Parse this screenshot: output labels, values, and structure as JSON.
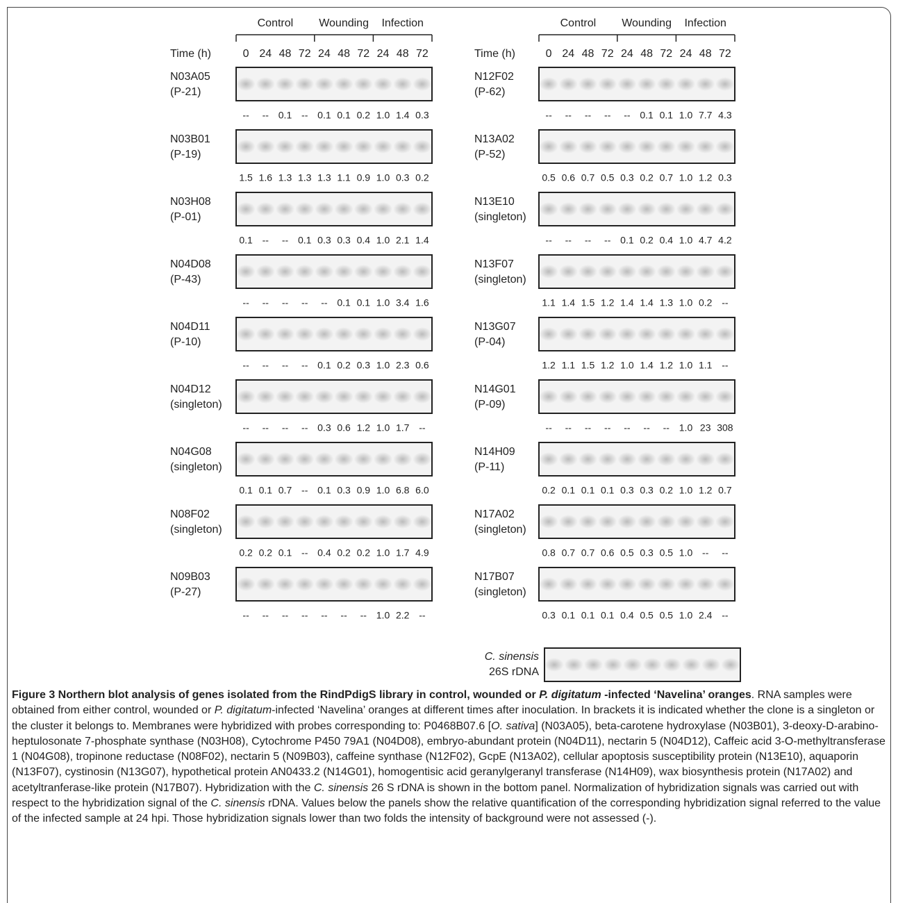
{
  "figure": {
    "panels": [
      {
        "groups": [
          "Control",
          "Wounding",
          "Infection"
        ],
        "time_label": "Time (h)",
        "times": [
          "0",
          "24",
          "48",
          "72",
          "24",
          "48",
          "72",
          "24",
          "48",
          "72"
        ],
        "rows": [
          {
            "name": "N03A05",
            "cluster": "(P-21)",
            "values": [
              "--",
              "--",
              "0.1",
              "--",
              "0.1",
              "0.1",
              "0.2",
              "1.0",
              "1.4",
              "0.3"
            ]
          },
          {
            "name": "N03B01",
            "cluster": "(P-19)",
            "values": [
              "1.5",
              "1.6",
              "1.3",
              "1.3",
              "1.3",
              "1.1",
              "0.9",
              "1.0",
              "0.3",
              "0.2"
            ]
          },
          {
            "name": "N03H08",
            "cluster": "(P-01)",
            "values": [
              "0.1",
              "--",
              "--",
              "0.1",
              "0.3",
              "0.3",
              "0.4",
              "1.0",
              "2.1",
              "1.4"
            ]
          },
          {
            "name": "N04D08",
            "cluster": "(P-43)",
            "values": [
              "--",
              "--",
              "--",
              "--",
              "--",
              "0.1",
              "0.1",
              "1.0",
              "3.4",
              "1.6"
            ]
          },
          {
            "name": "N04D11",
            "cluster": "(P-10)",
            "values": [
              "--",
              "--",
              "--",
              "--",
              "0.1",
              "0.2",
              "0.3",
              "1.0",
              "2.3",
              "0.6"
            ]
          },
          {
            "name": "N04D12",
            "cluster": "(singleton)",
            "values": [
              "--",
              "--",
              "--",
              "--",
              "0.3",
              "0.6",
              "1.2",
              "1.0",
              "1.7",
              "--"
            ]
          },
          {
            "name": "N04G08",
            "cluster": "(singleton)",
            "values": [
              "0.1",
              "0.1",
              "0.7",
              "--",
              "0.1",
              "0.3",
              "0.9",
              "1.0",
              "6.8",
              "6.0"
            ]
          },
          {
            "name": "N08F02",
            "cluster": "(singleton)",
            "values": [
              "0.2",
              "0.2",
              "0.1",
              "--",
              "0.4",
              "0.2",
              "0.2",
              "1.0",
              "1.7",
              "4.9"
            ]
          },
          {
            "name": "N09B03",
            "cluster": "(P-27)",
            "values": [
              "--",
              "--",
              "--",
              "--",
              "--",
              "--",
              "--",
              "1.0",
              "2.2",
              "--"
            ]
          }
        ]
      },
      {
        "groups": [
          "Control",
          "Wounding",
          "Infection"
        ],
        "time_label": "Time (h)",
        "times": [
          "0",
          "24",
          "48",
          "72",
          "24",
          "48",
          "72",
          "24",
          "48",
          "72"
        ],
        "rows": [
          {
            "name": "N12F02",
            "cluster": "(P-62)",
            "values": [
              "--",
              "--",
              "--",
              "--",
              "--",
              "0.1",
              "0.1",
              "1.0",
              "7.7",
              "4.3"
            ]
          },
          {
            "name": "N13A02",
            "cluster": "(P-52)",
            "values": [
              "0.5",
              "0.6",
              "0.7",
              "0.5",
              "0.3",
              "0.2",
              "0.7",
              "1.0",
              "1.2",
              "0.3"
            ]
          },
          {
            "name": "N13E10",
            "cluster": "(singleton)",
            "values": [
              "--",
              "--",
              "--",
              "--",
              "0.1",
              "0.2",
              "0.4",
              "1.0",
              "4.7",
              "4.2"
            ]
          },
          {
            "name": "N13F07",
            "cluster": "(singleton)",
            "values": [
              "1.1",
              "1.4",
              "1.5",
              "1.2",
              "1.4",
              "1.4",
              "1.3",
              "1.0",
              "0.2",
              "--"
            ]
          },
          {
            "name": "N13G07",
            "cluster": "(P-04)",
            "values": [
              "1.2",
              "1.1",
              "1.5",
              "1.2",
              "1.0",
              "1.4",
              "1.2",
              "1.0",
              "1.1",
              "--"
            ]
          },
          {
            "name": "N14G01",
            "cluster": "(P-09)",
            "values": [
              "--",
              "--",
              "--",
              "--",
              "--",
              "--",
              "--",
              "1.0",
              "23",
              "308"
            ]
          },
          {
            "name": "N14H09",
            "cluster": "(P-11)",
            "values": [
              "0.2",
              "0.1",
              "0.1",
              "0.1",
              "0.3",
              "0.3",
              "0.2",
              "1.0",
              "1.2",
              "0.7"
            ]
          },
          {
            "name": "N17A02",
            "cluster": "(singleton)",
            "values": [
              "0.8",
              "0.7",
              "0.7",
              "0.6",
              "0.5",
              "0.3",
              "0.5",
              "1.0",
              "--",
              "--"
            ]
          },
          {
            "name": "N17B07",
            "cluster": "(singleton)",
            "values": [
              "0.3",
              "0.1",
              "0.1",
              "0.1",
              "0.4",
              "0.5",
              "0.5",
              "1.0",
              "2.4",
              "--"
            ]
          }
        ]
      }
    ],
    "reference": {
      "name": "C. sinensis",
      "label": "26S rDNA"
    }
  },
  "caption": {
    "runs": [
      {
        "text": "Figure 3 Northern blot analysis of genes isolated from the RindPdigS library in control, wounded or ",
        "bold": true,
        "italic": false
      },
      {
        "text": "P. digitatum",
        "bold": true,
        "italic": true
      },
      {
        "text": " -infected ‘Navelina’ oranges",
        "bold": true,
        "italic": false
      },
      {
        "text": ". RNA samples were obtained from either control, wounded or ",
        "bold": false,
        "italic": false
      },
      {
        "text": "P. digitatum",
        "bold": false,
        "italic": true
      },
      {
        "text": "-infected ‘Navelina’ oranges at different times after inoculation. In brackets it is indicated whether the clone is a singleton or the cluster it belongs to. Membranes were hybridized with probes corresponding to: P0468B07.6 [",
        "bold": false,
        "italic": false
      },
      {
        "text": "O. sativa",
        "bold": false,
        "italic": true
      },
      {
        "text": "] (N03A05), beta-carotene hydroxylase (N03B01), 3-deoxy-D-arabino-heptulosonate 7-phosphate synthase (N03H08), Cytochrome P450 79A1 (N04D08), embryo-abundant protein (N04D11), nectarin 5 (N04D12), Caffeic acid 3-O-methyltransferase 1 (N04G08), tropinone reductase (N08F02), nectarin 5 (N09B03), caffeine synthase (N12F02), GcpE (N13A02), cellular apoptosis susceptibility protein (N13E10), aquaporin (N13F07), cystinosin (N13G07), hypothetical protein AN0433.2 (N14G01), homogentisic acid geranylgeranyl transferase (N14H09), wax biosynthesis protein (N17A02) and acetyltranferase-like protein (N17B07). Hybridization with the ",
        "bold": false,
        "italic": false
      },
      {
        "text": "C. sinensis",
        "bold": false,
        "italic": true
      },
      {
        "text": " 26 S rDNA is shown in the bottom panel. Normalization of hybridization signals was carried out with respect to the hybridization signal of the ",
        "bold": false,
        "italic": false
      },
      {
        "text": "C. sinensis",
        "bold": false,
        "italic": true
      },
      {
        "text": " rDNA. Values below the panels show the relative quantification of the corresponding hybridization signal referred to the value of the infected sample at 24 hpi. Those hybridization signals lower than two folds the intensity of background were not assessed (-).",
        "bold": false,
        "italic": false
      }
    ]
  }
}
